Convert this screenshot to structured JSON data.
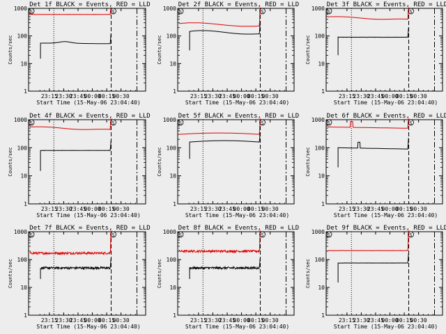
{
  "chart_data": {
    "type": "line",
    "title_suffix": "BLACK = Events, RED = LLD",
    "xlabel": "Start Time (15-May-06 23:04:40)",
    "ylabel": "Counts/sec",
    "x_tick_labels": [
      "23:15",
      "23:30",
      "23:45",
      "00:00",
      "00:15",
      "00:30"
    ],
    "x_ticks_min": [
      10.33,
      25.33,
      40.33,
      55.33,
      70.33,
      85.33
    ],
    "xlim_min": [
      -10,
      106
    ],
    "yscale": "log",
    "y_tick_labels": [
      "1",
      "10",
      "100",
      "1000"
    ],
    "ylim": [
      1,
      1000
    ],
    "markers_min": {
      "dotted": 15,
      "dashed": 75,
      "dashdot": 102
    },
    "marker_label": "S",
    "colors": {
      "events": "#000000",
      "lld": "#e00000",
      "background": "#ededed"
    },
    "panels": [
      {
        "title": "Det 1f",
        "events": {
          "start_min": 1,
          "end_min": 74,
          "level": 55,
          "drop_to": 15,
          "shape": "flat_bump"
        },
        "lld": {
          "start_min": -10,
          "end_min": 74,
          "level": 600,
          "shape": "flat"
        }
      },
      {
        "title": "Det 2f",
        "events": {
          "start_min": 1,
          "end_min": 74,
          "level": 130,
          "drop_to": 30,
          "shape": "wave"
        },
        "lld": {
          "start_min": -10,
          "end_min": 74,
          "level": 250,
          "shape": "wave"
        }
      },
      {
        "title": "Det 3f",
        "events": {
          "start_min": 1,
          "end_min": 74,
          "level": 90,
          "drop_to": 20,
          "shape": "flat"
        },
        "lld": {
          "start_min": -10,
          "end_min": 74,
          "level": 450,
          "shape": "decline"
        }
      },
      {
        "title": "Det 4f",
        "events": {
          "start_min": 1,
          "end_min": 74,
          "level": 80,
          "drop_to": 15,
          "shape": "flat"
        },
        "lld": {
          "start_min": -10,
          "end_min": 74,
          "level": 500,
          "shape": "decline"
        }
      },
      {
        "title": "Det 5f",
        "events": {
          "start_min": 1,
          "end_min": 74,
          "level": 160,
          "drop_to": 40,
          "shape": "hump"
        },
        "lld": {
          "start_min": -10,
          "end_min": 74,
          "level": 300,
          "shape": "hump"
        }
      },
      {
        "title": "Det 6f",
        "events": {
          "start_min": 1,
          "end_min": 74,
          "level": 100,
          "drop_to": 20,
          "shape": "spike"
        },
        "lld": {
          "start_min": -10,
          "end_min": 74,
          "level": 550,
          "shape": "spike"
        }
      },
      {
        "title": "Det 7f",
        "events": {
          "start_min": 1,
          "end_min": 74,
          "level": 50,
          "drop_to": 20,
          "shape": "noisy"
        },
        "lld": {
          "start_min": -10,
          "end_min": 74,
          "level": 170,
          "shape": "noisy"
        }
      },
      {
        "title": "Det 8f",
        "events": {
          "start_min": 1,
          "end_min": 74,
          "level": 50,
          "drop_to": 20,
          "shape": "noisy"
        },
        "lld": {
          "start_min": -10,
          "end_min": 74,
          "level": 200,
          "shape": "noisy"
        }
      },
      {
        "title": "Det 9f",
        "events": {
          "start_min": 1,
          "end_min": 74,
          "level": 75,
          "drop_to": 15,
          "shape": "flat"
        },
        "lld": {
          "start_min": -10,
          "end_min": 74,
          "level": 210,
          "shape": "flat"
        }
      }
    ]
  }
}
